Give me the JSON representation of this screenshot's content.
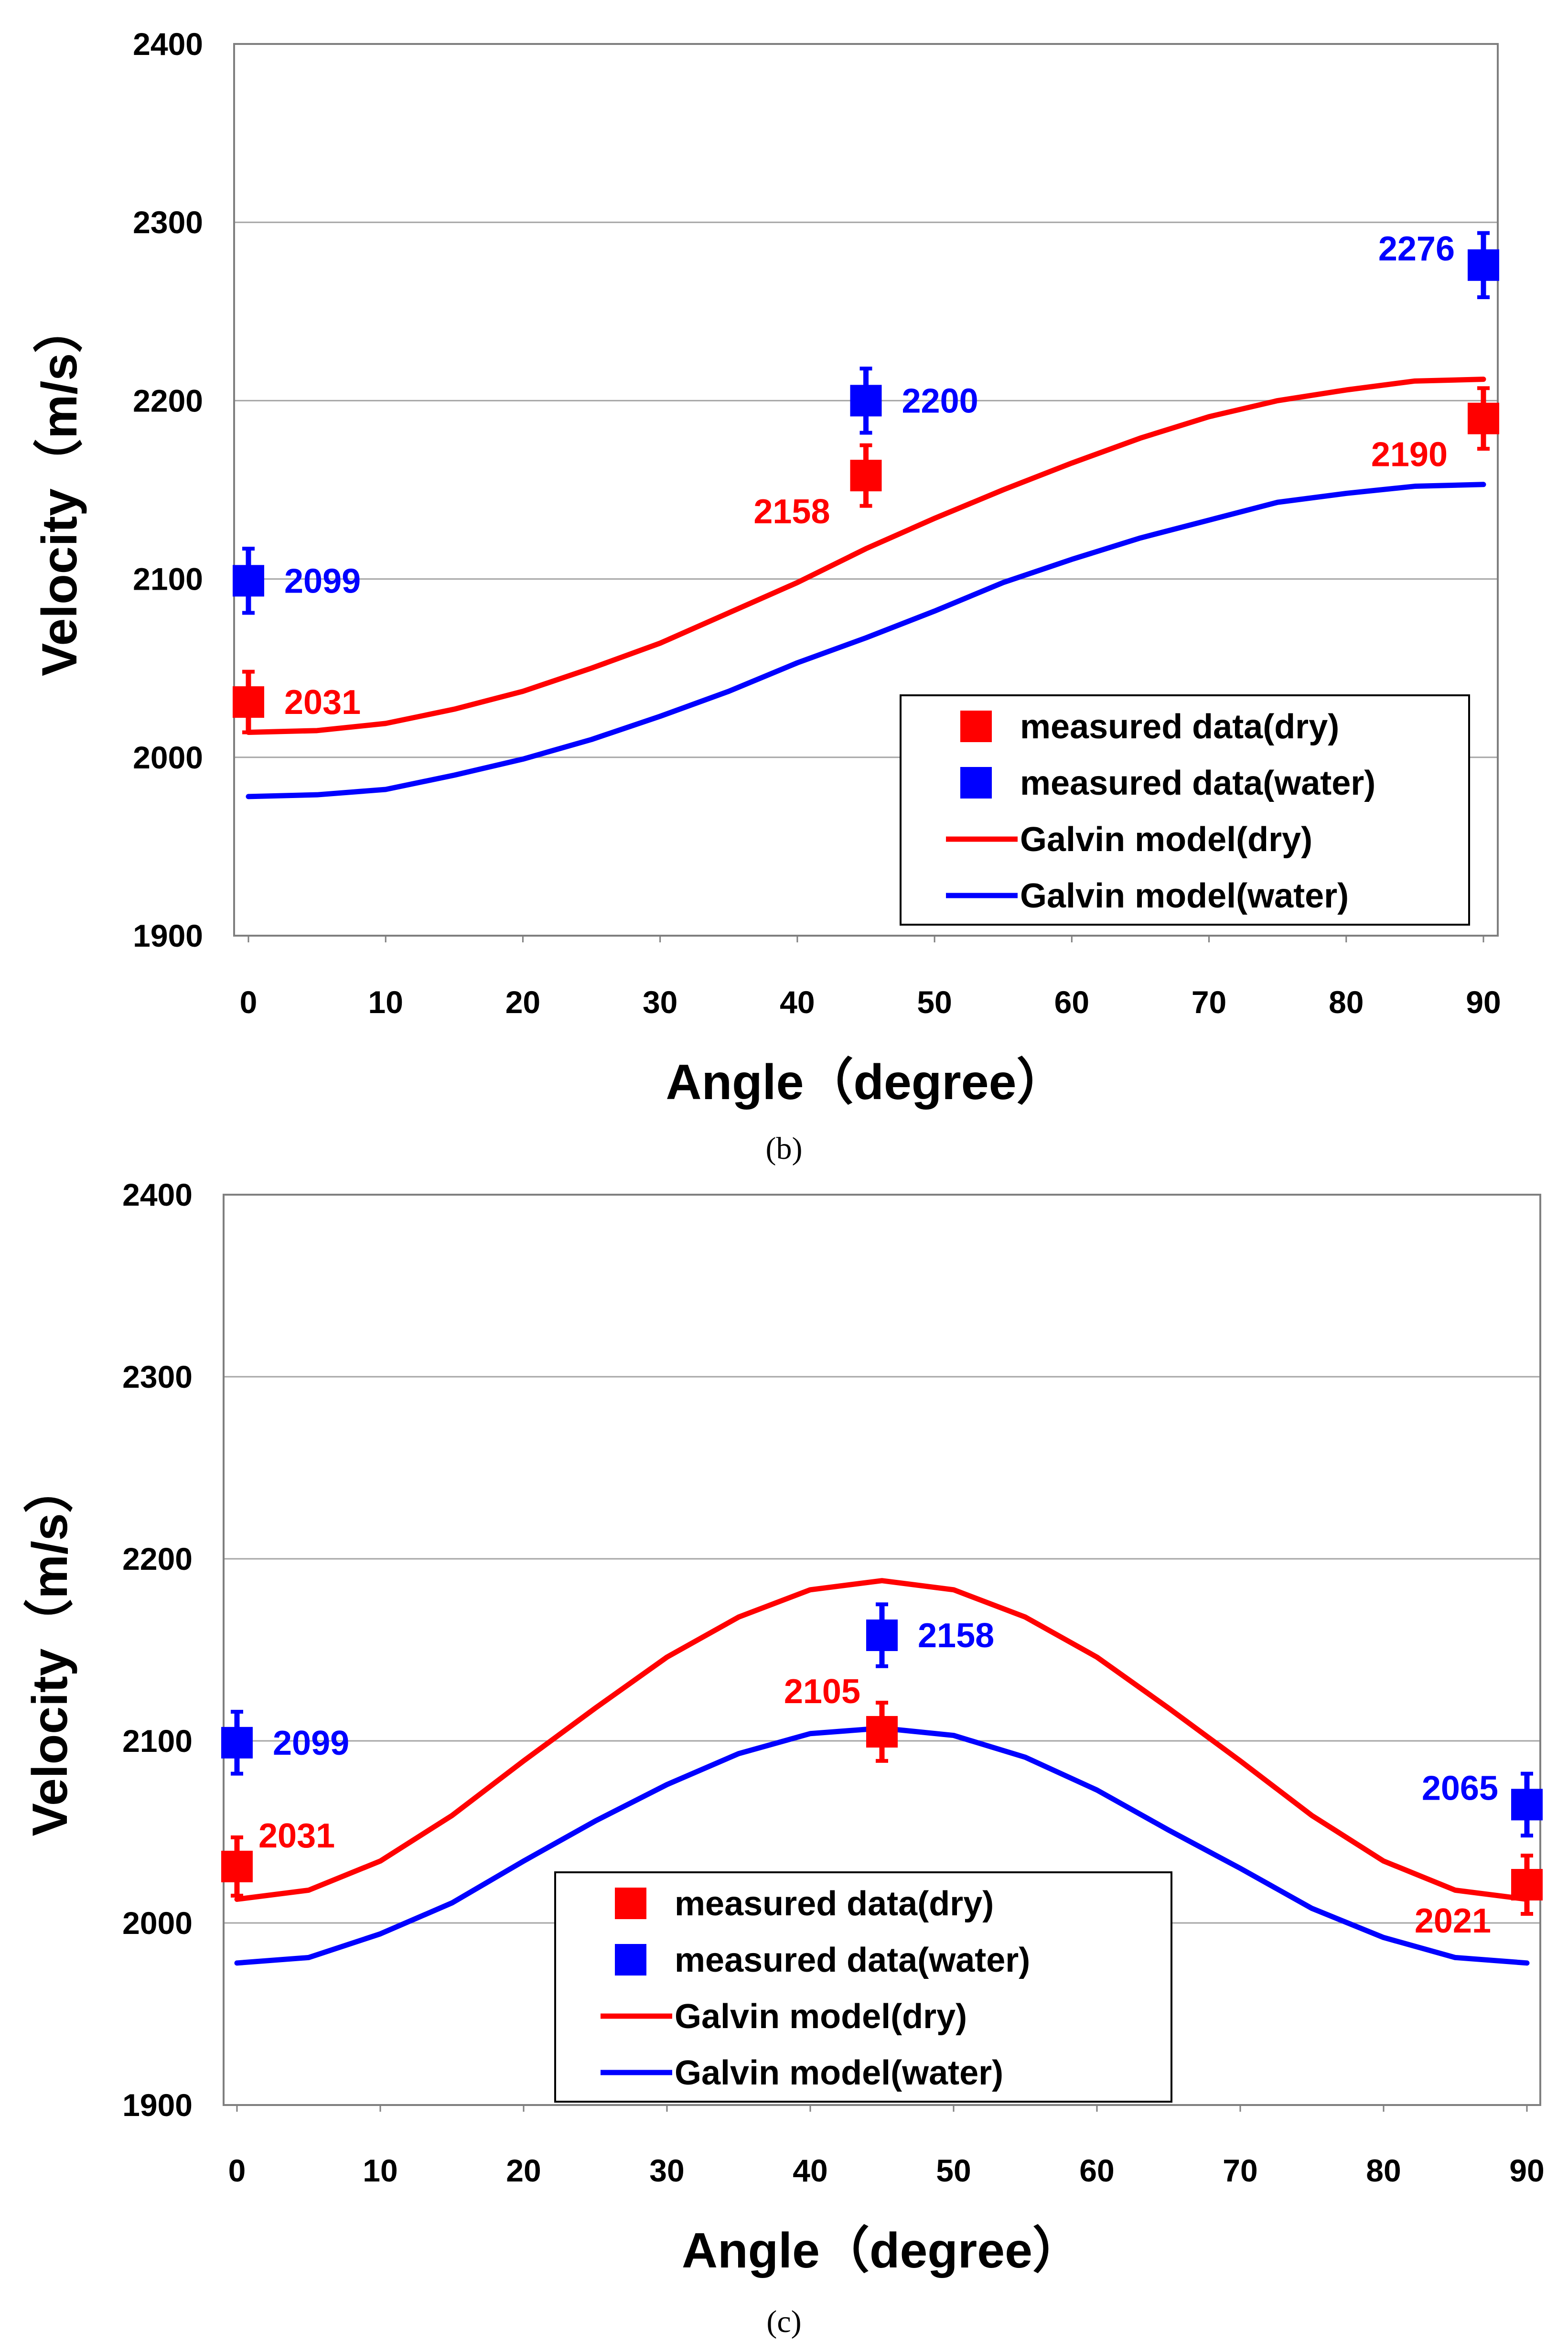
{
  "colors": {
    "dry": "#ff0000",
    "water": "#0000ff",
    "grid": "#a6a6a6",
    "axis": "#7f7f7f"
  },
  "chart_data": [
    {
      "type": "line+scatter",
      "panel_label": "(b)",
      "xlabel": "Angle（degree）",
      "ylabel": "Velocity（m/s）",
      "xlim": [
        0,
        90
      ],
      "ylim": [
        1900,
        2400
      ],
      "xticks": [
        "0",
        "10",
        "20",
        "30",
        "40",
        "50",
        "60",
        "70",
        "80",
        "90"
      ],
      "yticks": [
        "1900",
        "2000",
        "2100",
        "2200",
        "2300",
        "2400"
      ],
      "grid": "horizontal",
      "legend_position": "bottom-right",
      "series": [
        {
          "name": "measured data(dry)",
          "kind": "scatter",
          "color_key": "dry",
          "error": 17,
          "points": [
            {
              "x": 0,
              "y": 2031,
              "label": "2031",
              "label_pos": "right"
            },
            {
              "x": 45,
              "y": 2158,
              "label": "2158",
              "label_pos": "below-left"
            },
            {
              "x": 90,
              "y": 2190,
              "label": "2190",
              "label_pos": "below-left"
            }
          ]
        },
        {
          "name": "measured data(water)",
          "kind": "scatter",
          "color_key": "water",
          "error": 18,
          "points": [
            {
              "x": 0,
              "y": 2099,
              "label": "2099",
              "label_pos": "right"
            },
            {
              "x": 45,
              "y": 2200,
              "label": "2200",
              "label_pos": "right"
            },
            {
              "x": 90,
              "y": 2276,
              "label": "2276",
              "label_pos": "left"
            }
          ]
        },
        {
          "name": "Galvin model(dry)",
          "kind": "line",
          "color_key": "dry",
          "x": [
            0,
            5,
            10,
            15,
            20,
            25,
            30,
            35,
            40,
            45,
            50,
            55,
            60,
            65,
            70,
            75,
            80,
            85,
            90
          ],
          "y": [
            2014,
            2015,
            2019,
            2027,
            2037,
            2050,
            2064,
            2081,
            2098,
            2117,
            2134,
            2150,
            2165,
            2179,
            2191,
            2200,
            2206,
            2211,
            2212
          ]
        },
        {
          "name": "Galvin model(water)",
          "kind": "line",
          "color_key": "water",
          "x": [
            0,
            5,
            10,
            15,
            20,
            25,
            30,
            35,
            40,
            45,
            50,
            55,
            60,
            65,
            70,
            75,
            80,
            85,
            90
          ],
          "y": [
            1978,
            1979,
            1982,
            1990,
            1999,
            2010,
            2023,
            2037,
            2053,
            2067,
            2082,
            2098,
            2111,
            2123,
            2133,
            2143,
            2148,
            2152,
            2153
          ]
        }
      ]
    },
    {
      "type": "line+scatter",
      "panel_label": "(c)",
      "xlabel": "Angle（degree）",
      "ylabel": "Velocity（m/s）",
      "xlim": [
        0,
        90
      ],
      "ylim": [
        1900,
        2400
      ],
      "xticks": [
        "0",
        "10",
        "20",
        "30",
        "40",
        "50",
        "60",
        "70",
        "80",
        "90"
      ],
      "yticks": [
        "1900",
        "2000",
        "2100",
        "2200",
        "2300",
        "2400"
      ],
      "grid": "horizontal",
      "legend_position": "bottom-center",
      "series": [
        {
          "name": "measured data(dry)",
          "kind": "scatter",
          "color_key": "dry",
          "error": 16,
          "points": [
            {
              "x": 0,
              "y": 2031,
              "label": "2031",
              "label_pos": "above-right"
            },
            {
              "x": 45,
              "y": 2105,
              "label": "2105",
              "label_pos": "above-left"
            },
            {
              "x": 90,
              "y": 2021,
              "label": "2021",
              "label_pos": "below-left"
            }
          ]
        },
        {
          "name": "measured data(water)",
          "kind": "scatter",
          "color_key": "water",
          "error": 17,
          "points": [
            {
              "x": 0,
              "y": 2099,
              "label": "2099",
              "label_pos": "right"
            },
            {
              "x": 45,
              "y": 2158,
              "label": "2158",
              "label_pos": "right"
            },
            {
              "x": 90,
              "y": 2065,
              "label": "2065",
              "label_pos": "left"
            }
          ]
        },
        {
          "name": "Galvin model(dry)",
          "kind": "line",
          "color_key": "dry",
          "x": [
            0,
            5,
            10,
            15,
            20,
            25,
            30,
            35,
            40,
            45,
            50,
            55,
            60,
            65,
            70,
            75,
            80,
            85,
            90
          ],
          "y": [
            2013,
            2018,
            2034,
            2059,
            2089,
            2118,
            2146,
            2168,
            2183,
            2188,
            2183,
            2168,
            2146,
            2118,
            2089,
            2059,
            2034,
            2018,
            2013
          ]
        },
        {
          "name": "Galvin model(water)",
          "kind": "line",
          "color_key": "water",
          "x": [
            0,
            5,
            10,
            15,
            20,
            25,
            30,
            35,
            40,
            45,
            50,
            55,
            60,
            65,
            70,
            75,
            80,
            85,
            90
          ],
          "y": [
            1978,
            1981,
            1994,
            2011,
            2034,
            2056,
            2076,
            2093,
            2104,
            2107,
            2103,
            2091,
            2073,
            2051,
            2030,
            2008,
            1992,
            1981,
            1978
          ]
        }
      ]
    }
  ]
}
